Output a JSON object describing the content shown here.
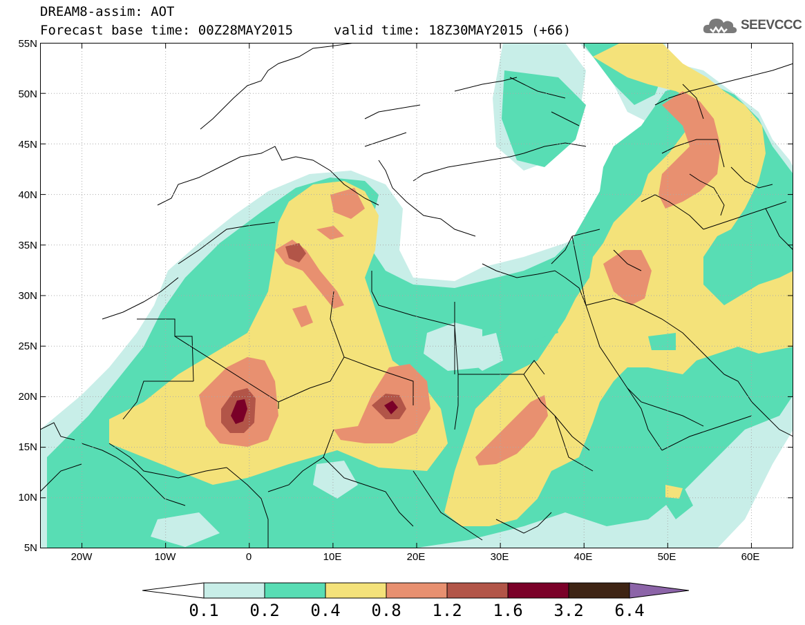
{
  "header": {
    "line1": "DREAM8-assim: AOT",
    "base_time": "Forecast base time: 00Z28MAY2015",
    "valid_time": "valid time: 18Z30MAY2015 (+66)"
  },
  "logo": {
    "text": "SEEVCCC",
    "icon": "cloud-icon"
  },
  "map": {
    "projection": "lat-lon",
    "lon_range": [
      -25,
      65
    ],
    "lat_range": [
      5,
      55
    ],
    "grid": true,
    "lat_labels": [
      "55N",
      "50N",
      "45N",
      "40N",
      "35N",
      "30N",
      "25N",
      "20N",
      "15N",
      "10N",
      "5N"
    ],
    "lon_labels": [
      "20W",
      "10W",
      "0",
      "10E",
      "20E",
      "30E",
      "40E",
      "50E",
      "60E"
    ]
  },
  "legend": {
    "labels": [
      "0.1",
      "0.2",
      "0.4",
      "0.8",
      "1.2",
      "1.6",
      "3.2",
      "6.4"
    ],
    "colors": [
      "#ffffff",
      "#c8eee8",
      "#58ddb4",
      "#f4e27a",
      "#e89070",
      "#b25548",
      "#7a0028",
      "#3e2414",
      "#8c64a8"
    ]
  },
  "colors": {
    "ocean_low": "#c8eee8",
    "aot_02": "#58ddb4",
    "aot_04": "#f4e27a",
    "aot_08": "#e89070",
    "aot_12": "#b25548",
    "aot_16": "#7a0028",
    "border": "#000000"
  }
}
